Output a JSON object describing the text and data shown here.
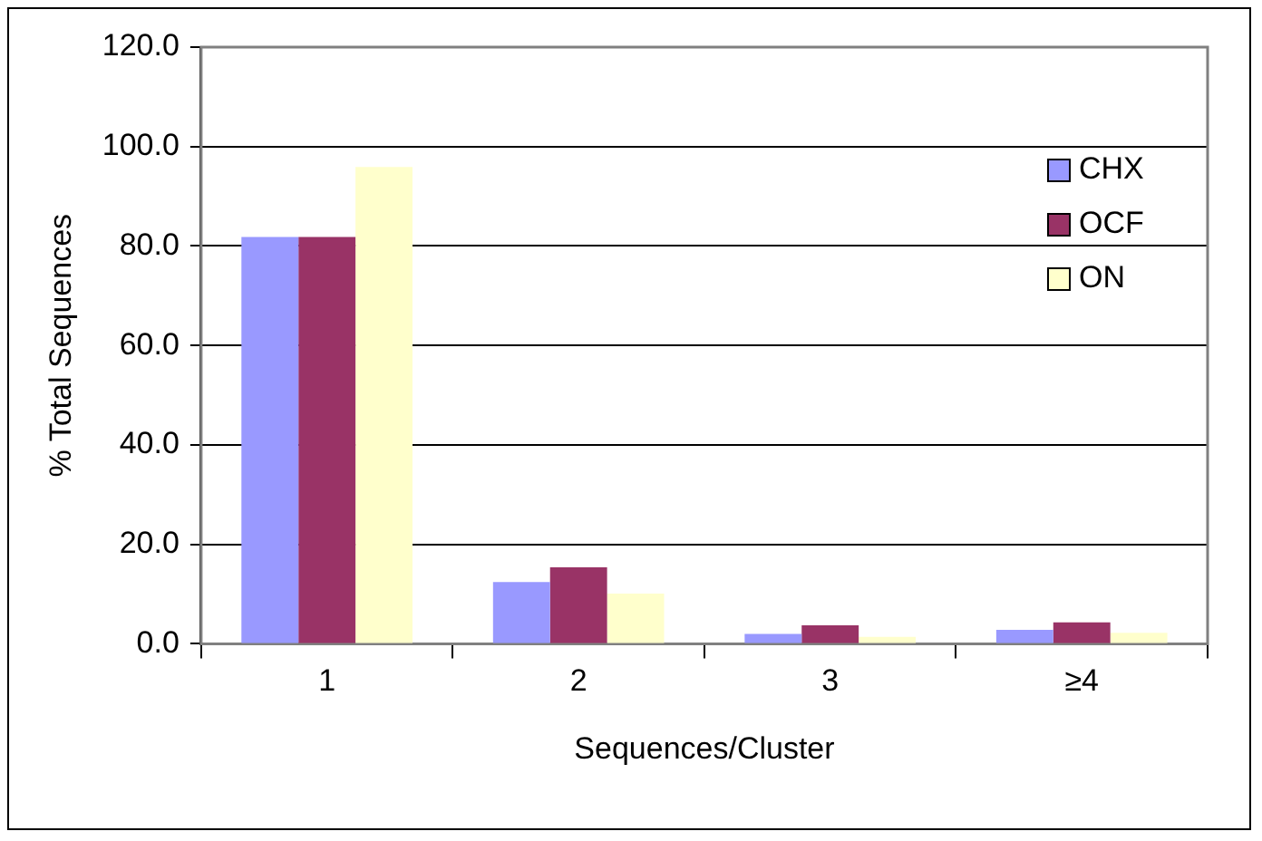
{
  "chart_data": {
    "type": "bar",
    "xlabel": "Sequences/Cluster",
    "ylabel": "% Total Sequences",
    "categories": [
      "1",
      "2",
      "3",
      "≥4"
    ],
    "series": [
      {
        "name": "CHX",
        "color": "#9999ff",
        "values": [
          81.8,
          12.4,
          2.0,
          2.8
        ]
      },
      {
        "name": "OCF",
        "color": "#993366",
        "values": [
          81.8,
          15.4,
          3.7,
          4.3
        ]
      },
      {
        "name": "ON",
        "color": "#ffffcc",
        "values": [
          95.9,
          10.1,
          1.4,
          2.2
        ]
      }
    ],
    "ylim": [
      0,
      120
    ],
    "yticks": [
      {
        "value": 0,
        "label": "0.0"
      },
      {
        "value": 20,
        "label": "20.0"
      },
      {
        "value": 40,
        "label": "40.0"
      },
      {
        "value": 60,
        "label": "60.0"
      },
      {
        "value": 80,
        "label": "80.0"
      },
      {
        "value": 100,
        "label": "100.0"
      },
      {
        "value": 120,
        "label": "120.0"
      }
    ],
    "grid": "y",
    "legend": "top right"
  }
}
